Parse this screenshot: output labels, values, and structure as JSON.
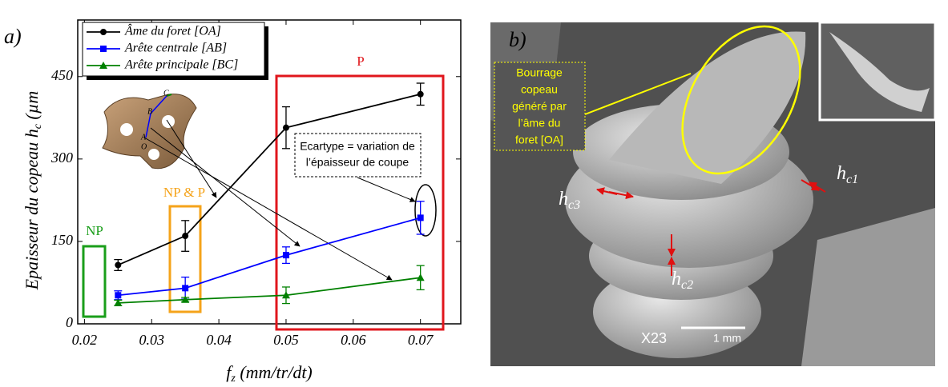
{
  "chart_data": {
    "type": "line",
    "panel_label": "a)",
    "x_label": {
      "text": "f",
      "sub": "z",
      "rest": " (mm/tr/dt)"
    },
    "y_label": {
      "text": "Epaisseur du copeau h",
      "sub": "c",
      "rest": " (µm"
    },
    "x": [
      0.025,
      0.035,
      0.05,
      0.07
    ],
    "series": [
      {
        "name": "Âme du foret [OA]",
        "color": "#000000",
        "marker": "circle",
        "values": [
          107,
          160,
          357,
          418
        ],
        "errors": [
          10,
          28,
          38,
          20
        ]
      },
      {
        "name": "Arête centrale [AB]",
        "color": "#0000ff",
        "marker": "square",
        "values": [
          52,
          65,
          125,
          193
        ],
        "errors": [
          8,
          20,
          15,
          30
        ]
      },
      {
        "name": "Arête principale [BC]",
        "color": "#008000",
        "marker": "triangle",
        "values": [
          38,
          44,
          52,
          84
        ],
        "errors": [
          5,
          4,
          15,
          22
        ]
      }
    ],
    "xlim": [
      0.019,
      0.076
    ],
    "ylim": [
      0,
      553
    ],
    "xticks": [
      0.02,
      0.03,
      0.04,
      0.05,
      0.06,
      0.07
    ],
    "yticks": [
      0,
      150,
      300,
      450
    ],
    "legend": "top-left",
    "annotations": [
      {
        "text": "NP",
        "color": "#1a9e1a"
      },
      {
        "text": "NP & P",
        "color": "#f5a31a"
      },
      {
        "text": "P",
        "color": "#e0161c"
      }
    ],
    "note": [
      "Ecartype = variation de",
      "l’épaisseur de coupe"
    ],
    "drill_labels": [
      "A",
      "B",
      "C",
      "O"
    ]
  },
  "photo": {
    "panel_label": "b)",
    "callout": [
      "Bourrage",
      "copeau",
      "généré par",
      "l’âme du",
      "foret [OA]"
    ],
    "thickness_labels": [
      {
        "main": "h",
        "sub": "c1"
      },
      {
        "main": "h",
        "sub": "c2"
      },
      {
        "main": "h",
        "sub": "c3"
      }
    ],
    "scale": {
      "magnification": "X23",
      "length": "1 mm"
    }
  }
}
